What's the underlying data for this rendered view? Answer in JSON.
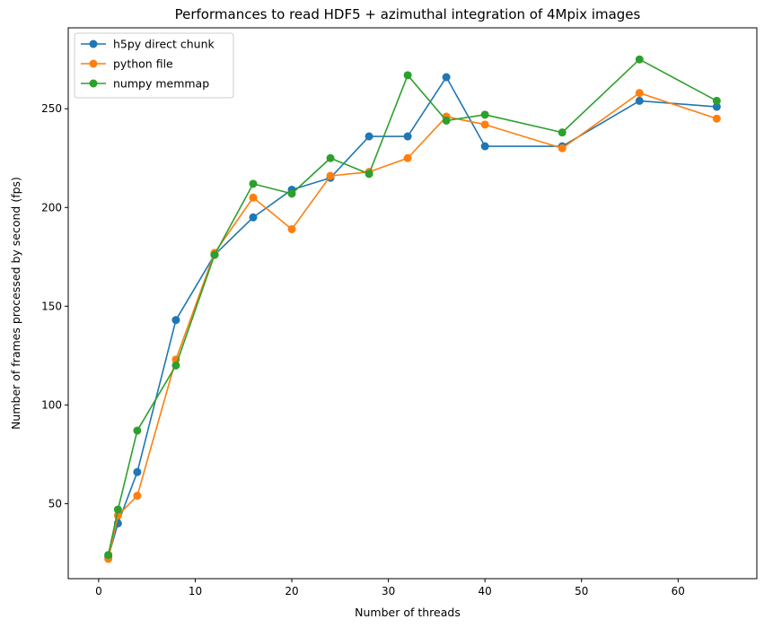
{
  "chart_data": {
    "type": "line",
    "title": "Performances to read HDF5 + azimuthal integration of 4Mpix images",
    "xlabel": "Number of threads",
    "ylabel": "Number of frames processed by second (fps)",
    "xlim": [
      -3.15,
      68.15
    ],
    "ylim": [
      12,
      291
    ],
    "xticks": [
      0,
      10,
      20,
      30,
      40,
      50,
      60
    ],
    "yticks": [
      50,
      100,
      150,
      200,
      250
    ],
    "grid": false,
    "legend_position": "top-left",
    "x": [
      1,
      2,
      4,
      8,
      12,
      16,
      20,
      24,
      28,
      32,
      36,
      40,
      48,
      56,
      64
    ],
    "series": [
      {
        "name": "h5py direct chunk",
        "color": "#1f77b4",
        "values": [
          23,
          40,
          66,
          143,
          176,
          195,
          209,
          215,
          236,
          236,
          266,
          231,
          231,
          254,
          251
        ]
      },
      {
        "name": "python file",
        "color": "#ff7f0e",
        "values": [
          22,
          44,
          54,
          123,
          177,
          205,
          189,
          216,
          218,
          225,
          246,
          242,
          230,
          258,
          245
        ]
      },
      {
        "name": "numpy memmap",
        "color": "#2ca02c",
        "values": [
          24,
          47,
          87,
          120,
          176,
          212,
          207,
          225,
          217,
          267,
          244,
          247,
          238,
          275,
          254
        ]
      }
    ]
  }
}
